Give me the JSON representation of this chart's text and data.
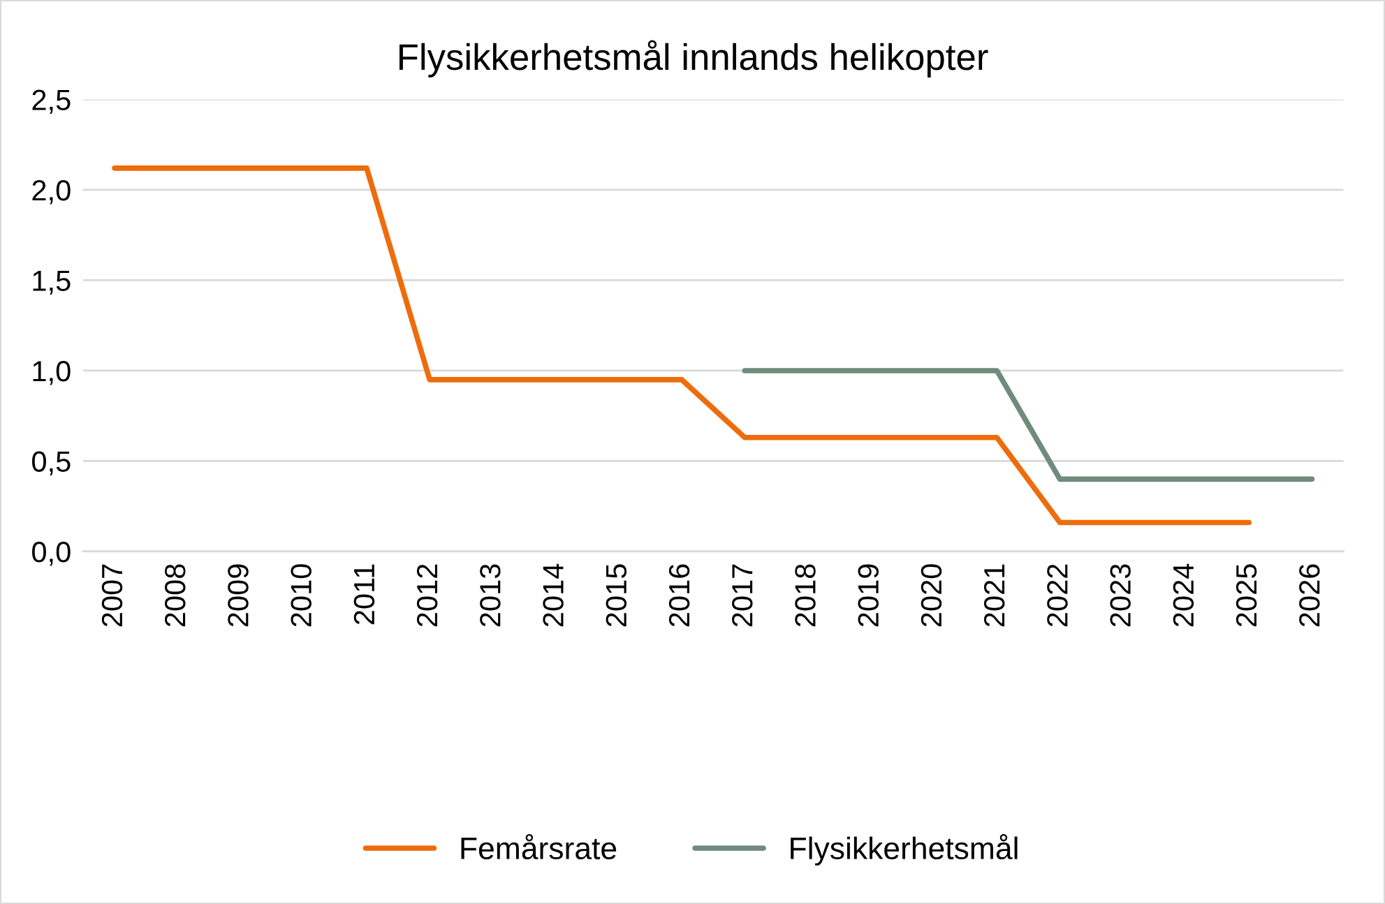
{
  "chart_data": {
    "type": "line",
    "title": "Flysikkerhetsmål innlands helikopter",
    "categories": [
      "2007",
      "2008",
      "2009",
      "2010",
      "2011",
      "2012",
      "2013",
      "2014",
      "2015",
      "2016",
      "2017",
      "2018",
      "2019",
      "2020",
      "2021",
      "2022",
      "2023",
      "2024",
      "2025",
      "2026"
    ],
    "series": [
      {
        "name": "Femårsrate",
        "color": "#ee6c0c",
        "values": [
          2.12,
          2.12,
          2.12,
          2.12,
          2.12,
          0.95,
          0.95,
          0.95,
          0.95,
          0.95,
          0.63,
          0.63,
          0.63,
          0.63,
          0.63,
          0.16,
          0.16,
          0.16,
          0.16,
          null
        ]
      },
      {
        "name": "Flysikkerhetsmål",
        "color": "#6e8b7b",
        "values": [
          null,
          null,
          null,
          null,
          null,
          null,
          null,
          null,
          null,
          null,
          1.0,
          1.0,
          1.0,
          1.0,
          1.0,
          0.4,
          0.4,
          0.4,
          0.4,
          0.4
        ]
      }
    ],
    "ylim": [
      0,
      2.5
    ],
    "yticks": [
      {
        "value": 0,
        "label": "0,0"
      },
      {
        "value": 0.5,
        "label": "0,5"
      },
      {
        "value": 1,
        "label": "1,0"
      },
      {
        "value": 1.5,
        "label": "1,5"
      },
      {
        "value": 2,
        "label": "2,0"
      },
      {
        "value": 2.5,
        "label": "2,5"
      }
    ],
    "grid": "y",
    "legend": "bottom",
    "marker": "none",
    "line_style": "solid"
  }
}
